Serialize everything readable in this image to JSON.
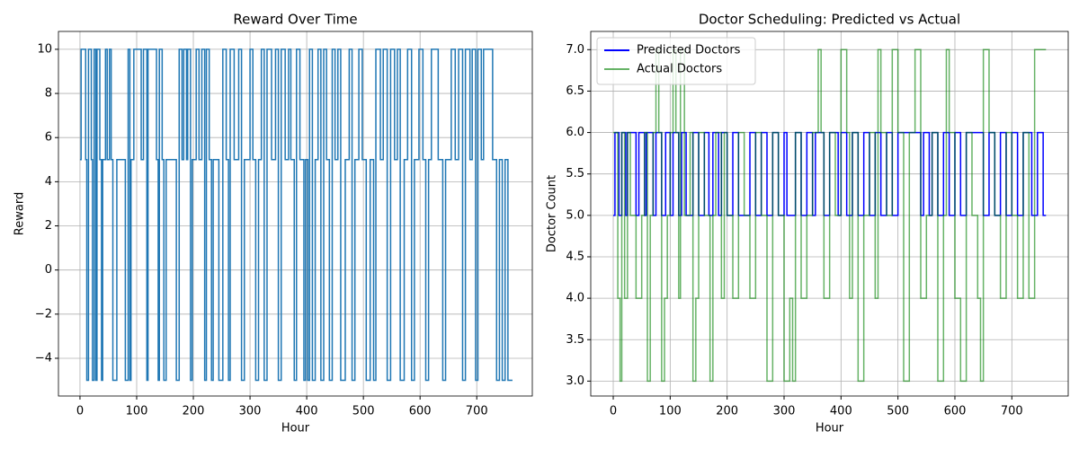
{
  "chart_data": [
    {
      "type": "step",
      "title": "Reward Over Time",
      "xlabel": "Hour",
      "ylabel": "Reward",
      "xlim": [
        -38,
        798
      ],
      "ylim": [
        -5.71,
        10.81
      ],
      "xticks": [
        0,
        100,
        200,
        300,
        400,
        500,
        600,
        700
      ],
      "yticks": [
        {
          "value": -4,
          "label": "−4"
        },
        {
          "value": -2,
          "label": "−2"
        },
        0,
        2,
        4,
        6,
        8,
        10
      ],
      "grid": true,
      "x": [
        0,
        2,
        10,
        12,
        15,
        20,
        22,
        25,
        28,
        30,
        35,
        38,
        40,
        45,
        48,
        52,
        55,
        58,
        65,
        80,
        85,
        88,
        90,
        95,
        108,
        112,
        118,
        120,
        135,
        138,
        140,
        145,
        148,
        152,
        170,
        175,
        180,
        183,
        188,
        190,
        195,
        198,
        205,
        210,
        215,
        220,
        223,
        228,
        232,
        235,
        245,
        252,
        258,
        262,
        265,
        272,
        280,
        285,
        290,
        300,
        305,
        310,
        315,
        320,
        325,
        330,
        338,
        345,
        350,
        355,
        362,
        368,
        372,
        378,
        382,
        388,
        395,
        398,
        402,
        405,
        410,
        415,
        420,
        425,
        430,
        435,
        440,
        445,
        450,
        455,
        460,
        468,
        475,
        480,
        485,
        492,
        498,
        505,
        512,
        518,
        522,
        530,
        535,
        542,
        548,
        555,
        560,
        565,
        572,
        578,
        585,
        590,
        598,
        605,
        610,
        615,
        620,
        632,
        640,
        645,
        655,
        662,
        668,
        675,
        680,
        688,
        692,
        698,
        702,
        708,
        712,
        728,
        735,
        740,
        745,
        750,
        755,
        763
      ],
      "series": [
        {
          "color": "#1f77b4",
          "width": 1.5,
          "values": [
            5,
            10,
            5,
            -5,
            10,
            5,
            -5,
            10,
            -5,
            10,
            5,
            -5,
            5,
            10,
            5,
            10,
            5,
            -5,
            5,
            -5,
            10,
            -5,
            5,
            10,
            5,
            10,
            -5,
            10,
            5,
            -5,
            10,
            5,
            -5,
            5,
            -5,
            10,
            5,
            10,
            5,
            10,
            -5,
            5,
            10,
            5,
            10,
            -5,
            10,
            5,
            -5,
            5,
            -5,
            10,
            5,
            -5,
            10,
            5,
            10,
            -5,
            5,
            10,
            5,
            -5,
            5,
            10,
            -5,
            10,
            5,
            10,
            -5,
            10,
            5,
            10,
            5,
            -5,
            10,
            5,
            -5,
            5,
            -5,
            10,
            -5,
            5,
            10,
            -5,
            10,
            5,
            -5,
            10,
            5,
            10,
            -5,
            5,
            10,
            -5,
            5,
            10,
            5,
            -5,
            5,
            -5,
            10,
            5,
            10,
            -5,
            10,
            5,
            10,
            -5,
            5,
            10,
            -5,
            5,
            10,
            5,
            -5,
            5,
            10,
            5,
            -5,
            5,
            10,
            5,
            10,
            -5,
            10,
            5,
            10,
            -5,
            10,
            5,
            10,
            5,
            -5,
            5,
            -5,
            5,
            -5,
            -5
          ]
        }
      ]
    },
    {
      "type": "step",
      "title": "Doctor Scheduling: Predicted vs Actual",
      "xlabel": "Hour",
      "ylabel": "Doctor Count",
      "xlim": [
        -39.5,
        799
      ],
      "ylim": [
        2.82,
        7.22
      ],
      "xticks": [
        0,
        100,
        200,
        300,
        400,
        500,
        600,
        700
      ],
      "yticks": [
        {
          "value": 3,
          "label": "3.0"
        },
        {
          "value": 3.5,
          "label": "3.5"
        },
        {
          "value": 4,
          "label": "4.0"
        },
        {
          "value": 4.5,
          "label": "4.5"
        },
        {
          "value": 5,
          "label": "5.0"
        },
        {
          "value": 5.5,
          "label": "5.5"
        },
        {
          "value": 6,
          "label": "6.0"
        },
        {
          "value": 6.5,
          "label": "6.5"
        },
        {
          "value": 7,
          "label": "7.0"
        }
      ],
      "grid": true,
      "legend": "upper left",
      "series": [
        {
          "name": "Predicted Doctors",
          "color": "#0000ff",
          "opacity": 1,
          "width": 1.5,
          "x": [
            0,
            3,
            10,
            15,
            22,
            25,
            40,
            45,
            55,
            58,
            70,
            75,
            85,
            92,
            100,
            105,
            115,
            120,
            128,
            140,
            150,
            160,
            168,
            175,
            185,
            190,
            200,
            210,
            220,
            240,
            250,
            260,
            270,
            280,
            290,
            300,
            305,
            320,
            330,
            340,
            350,
            355,
            370,
            380,
            395,
            400,
            410,
            420,
            430,
            440,
            450,
            460,
            470,
            480,
            490,
            500,
            540,
            545,
            555,
            560,
            570,
            580,
            590,
            600,
            610,
            620,
            650,
            660,
            670,
            680,
            690,
            700,
            710,
            720,
            735,
            745,
            755,
            760
          ],
          "values": [
            5,
            6,
            5,
            6,
            5,
            6,
            5,
            6,
            5,
            6,
            5,
            6,
            5,
            6,
            5,
            6,
            5,
            6,
            5,
            6,
            5,
            6,
            5,
            6,
            5,
            6,
            5,
            6,
            5,
            6,
            5,
            6,
            5,
            6,
            5,
            6,
            5,
            6,
            5,
            6,
            5,
            6,
            5,
            6,
            5,
            6,
            5,
            6,
            5,
            6,
            5,
            6,
            5,
            6,
            5,
            6,
            5,
            6,
            5,
            6,
            5,
            6,
            5,
            6,
            5,
            6,
            5,
            6,
            5,
            6,
            5,
            6,
            5,
            6,
            5,
            6,
            5,
            5
          ]
        },
        {
          "name": "Actual Doctors",
          "color": "#008000",
          "opacity": 0.6,
          "width": 1.5,
          "x": [
            0,
            8,
            12,
            15,
            20,
            25,
            30,
            40,
            50,
            55,
            60,
            65,
            70,
            75,
            80,
            85,
            90,
            95,
            100,
            105,
            110,
            115,
            118,
            125,
            135,
            140,
            145,
            150,
            160,
            170,
            175,
            180,
            190,
            195,
            200,
            210,
            220,
            230,
            240,
            250,
            260,
            270,
            280,
            290,
            300,
            310,
            315,
            320,
            330,
            340,
            350,
            360,
            365,
            370,
            380,
            390,
            400,
            410,
            415,
            420,
            430,
            440,
            450,
            460,
            465,
            470,
            480,
            490,
            500,
            510,
            520,
            530,
            540,
            550,
            560,
            570,
            580,
            585,
            590,
            600,
            610,
            620,
            630,
            640,
            645,
            650,
            660,
            670,
            680,
            690,
            700,
            710,
            720,
            730,
            740,
            760
          ],
          "values": [
            6,
            4,
            3,
            6,
            4,
            6,
            5,
            4,
            5,
            6,
            3,
            5,
            6,
            7,
            6,
            3,
            4,
            5,
            6,
            7,
            6,
            4,
            7,
            5,
            6,
            3,
            4,
            6,
            5,
            3,
            5,
            6,
            4,
            6,
            5,
            4,
            6,
            5,
            4,
            6,
            5,
            3,
            6,
            5,
            3,
            4,
            3,
            6,
            4,
            5,
            6,
            7,
            6,
            4,
            6,
            5,
            7,
            6,
            4,
            6,
            3,
            5,
            6,
            4,
            7,
            6,
            5,
            7,
            6,
            3,
            6,
            7,
            4,
            5,
            6,
            3,
            5,
            7,
            6,
            4,
            3,
            6,
            5,
            4,
            3,
            7,
            6,
            5,
            4,
            6,
            5,
            4,
            6,
            4,
            7,
            7
          ]
        }
      ]
    }
  ]
}
